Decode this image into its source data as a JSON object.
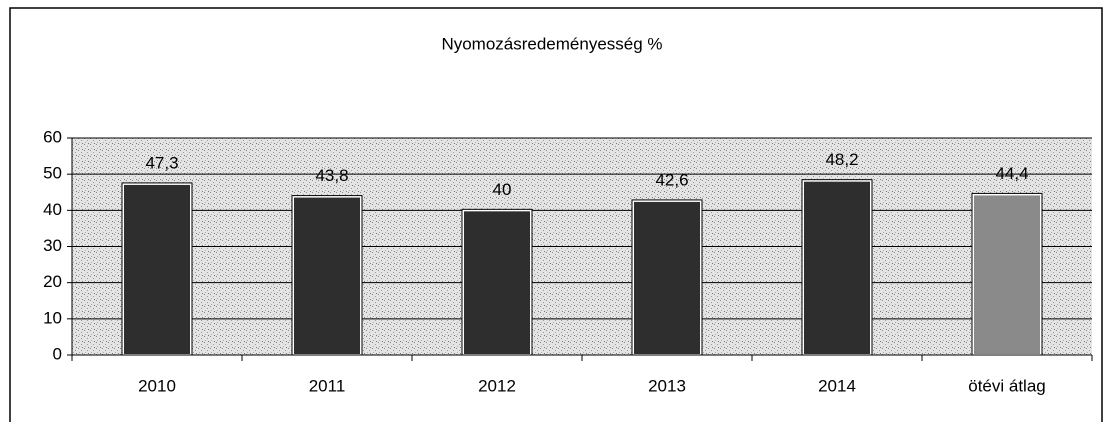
{
  "chart_data": {
    "type": "bar",
    "title": "Nyomozásredeményesség %",
    "categories": [
      "2010",
      "2011",
      "2012",
      "2013",
      "2014",
      "ötévi átlag"
    ],
    "values": [
      47.3,
      43.8,
      40,
      42.6,
      48.2,
      44.4
    ],
    "value_labels": [
      "47,3",
      "43,8",
      "40",
      "42,6",
      "48,2",
      "44,4"
    ],
    "colors": [
      "#2e2e2e",
      "#2e2e2e",
      "#2e2e2e",
      "#2e2e2e",
      "#2e2e2e",
      "#8a8a8a"
    ],
    "ylim": [
      0,
      60
    ],
    "yticks": [
      0,
      10,
      20,
      30,
      40,
      50,
      60
    ],
    "grid": true
  }
}
